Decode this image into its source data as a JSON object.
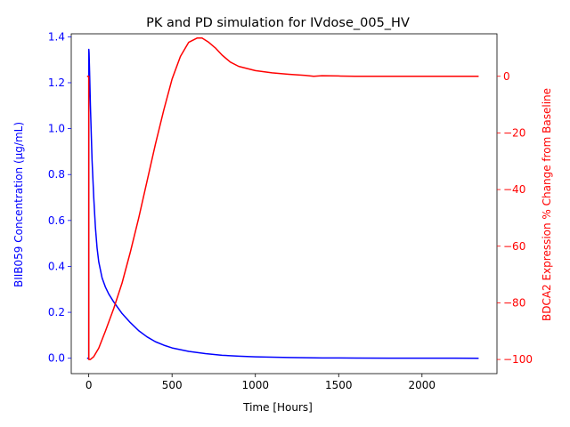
{
  "chart_data": {
    "type": "line",
    "title": "PK and PD simulation for IVdose_005_HV",
    "xlabel": "Time [Hours]",
    "xlim": [
      -105,
      2450
    ],
    "xticks": [
      0,
      500,
      1000,
      1500,
      2000
    ],
    "y_left": {
      "label": "BIIB059 Concentration (µg/mL)",
      "color": "#0000ff",
      "lim": [
        -0.067,
        1.413
      ],
      "ticks": [
        0.0,
        0.2,
        0.4,
        0.6,
        0.8,
        1.0,
        1.2,
        1.4
      ]
    },
    "y_right": {
      "label": "BDCA2 Expression % Change from Baseline",
      "color": "#ff0000",
      "lim": [
        -105,
        15
      ],
      "ticks": [
        0,
        -20,
        -40,
        -60,
        -80,
        -100
      ]
    },
    "series": [
      {
        "axis": "left",
        "color": "#0000ff",
        "x": [
          -10,
          -5,
          -2,
          0,
          0.5,
          2,
          5,
          10,
          20,
          30,
          40,
          50,
          60,
          80,
          100,
          120,
          150,
          200,
          250,
          300,
          350,
          400,
          450,
          500,
          600,
          700,
          800,
          900,
          1000,
          1200,
          1400,
          1600,
          1800,
          2000,
          2200,
          2340
        ],
        "y": [
          0.0,
          0.0,
          0.0,
          0.0,
          1.345,
          1.33,
          1.25,
          1.1,
          0.86,
          0.7,
          0.57,
          0.48,
          0.42,
          0.35,
          0.31,
          0.28,
          0.245,
          0.195,
          0.155,
          0.12,
          0.093,
          0.072,
          0.057,
          0.045,
          0.03,
          0.02,
          0.013,
          0.009,
          0.006,
          0.003,
          0.0015,
          0.0008,
          0.0004,
          0.0002,
          0.0001,
          0.0
        ]
      },
      {
        "axis": "right",
        "color": "#ff0000",
        "x": [
          -10,
          -5,
          -2,
          0,
          0.5,
          2,
          10,
          30,
          60,
          100,
          150,
          200,
          250,
          300,
          350,
          400,
          450,
          500,
          550,
          600,
          650,
          680,
          720,
          760,
          800,
          850,
          900,
          1000,
          1100,
          1200,
          1300,
          1350,
          1400,
          1500,
          1600,
          1700,
          1800,
          2000,
          2200,
          2340
        ],
        "y": [
          0,
          0,
          0,
          0,
          -100,
          -100,
          -100,
          -99,
          -96,
          -90,
          -82,
          -73,
          -62,
          -50,
          -37,
          -24,
          -12,
          -1,
          7,
          12,
          13.5,
          13.5,
          12,
          10,
          7.5,
          5,
          3.5,
          2,
          1.2,
          0.7,
          0.3,
          0,
          0.2,
          0.1,
          0,
          0,
          0,
          0,
          0,
          0
        ]
      }
    ]
  }
}
